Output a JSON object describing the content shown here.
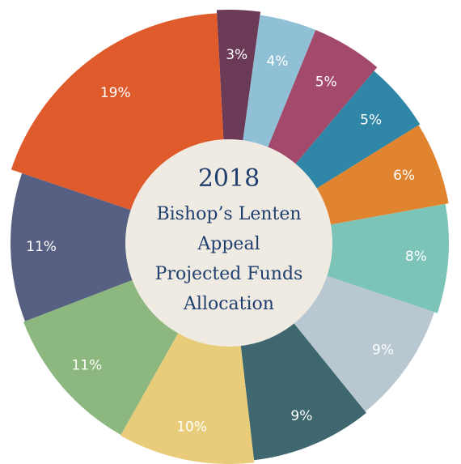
{
  "chart_data": {
    "type": "pie",
    "title": "2018",
    "subtitle": [
      "Bishop’s Lenten",
      "Appeal",
      "Projected Funds",
      "Allocation"
    ],
    "values": [
      3,
      4,
      5,
      5,
      6,
      8,
      9,
      9,
      10,
      11,
      11,
      19
    ],
    "value_labels": [
      "3%",
      "4%",
      "5%",
      "5%",
      "6%",
      "8%",
      "9%",
      "9%",
      "10%",
      "11%",
      "11%",
      "19%"
    ],
    "colors": [
      "#6b3a57",
      "#90c0d6",
      "#a34a6c",
      "#2f86a6",
      "#e0842f",
      "#7dc4b8",
      "#b9c7d0",
      "#3f6770",
      "#e8cc7a",
      "#8cb77e",
      "#576083",
      "#e05b2b"
    ]
  }
}
